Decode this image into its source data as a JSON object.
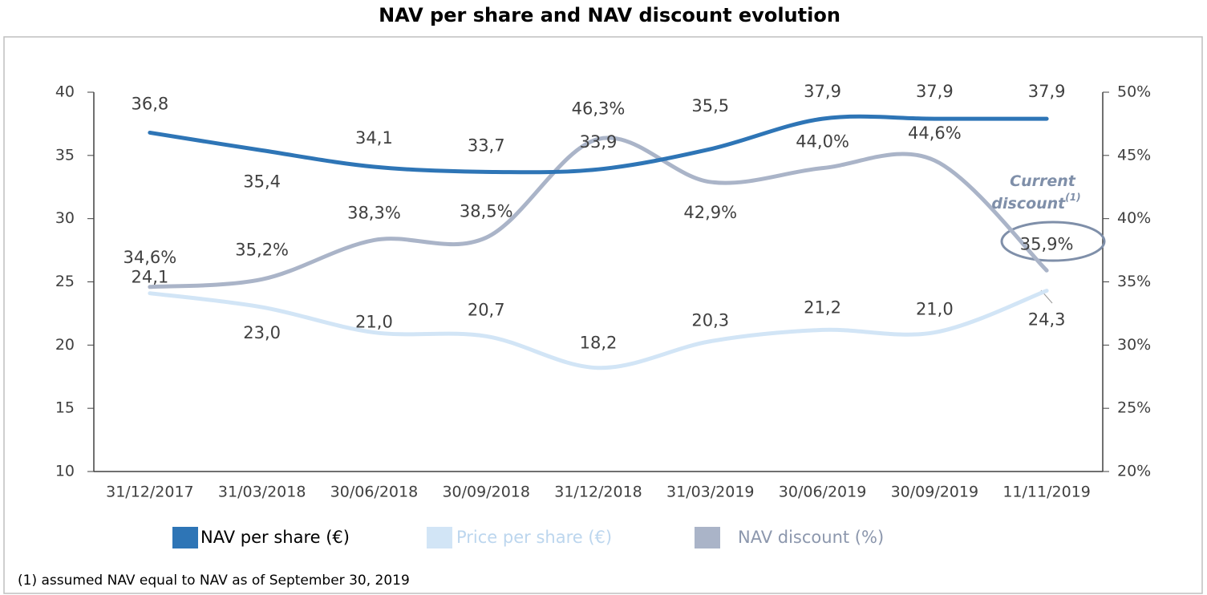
{
  "chart_data": {
    "type": "line",
    "title": "NAV per share and NAV discount evolution",
    "categories": [
      "31/12/2017",
      "31/03/2018",
      "30/06/2018",
      "30/09/2018",
      "31/12/2018",
      "31/03/2019",
      "30/06/2019",
      "30/09/2019",
      "11/11/2019"
    ],
    "series": [
      {
        "name": "NAV per share (€)",
        "color": "#2e75b6",
        "values": [
          36.8,
          35.4,
          34.1,
          33.7,
          33.9,
          35.5,
          37.9,
          37.9,
          37.9
        ],
        "value_labels": [
          "36,8",
          "35,4",
          "34,1",
          "33,7",
          "33,9",
          "35,5",
          "37,9",
          "37,9",
          "37,9"
        ]
      },
      {
        "name": "Price per share (€)",
        "color": "#d2e5f6",
        "values": [
          24.1,
          23.0,
          21.0,
          20.7,
          18.2,
          20.3,
          21.2,
          21.0,
          24.3
        ],
        "value_labels": [
          "24,1",
          "23,0",
          "21,0",
          "20,7",
          "18,2",
          "20,3",
          "21,2",
          "21,0",
          "24,3"
        ]
      },
      {
        "name": "NAV discount (%)",
        "color": "#aab4c8",
        "axis": "y2",
        "values": [
          34.6,
          35.2,
          38.3,
          38.5,
          46.3,
          42.9,
          44.0,
          44.6,
          35.9
        ],
        "value_labels": [
          "34,6%",
          "35,2%",
          "38,3%",
          "38,5%",
          "46,3%",
          "42,9%",
          "44,0%",
          "44,6%",
          "35,9%"
        ]
      }
    ],
    "ylim": [
      10,
      40
    ],
    "yticks": [
      10,
      15,
      20,
      25,
      30,
      35,
      40
    ],
    "y2lim": [
      20,
      50
    ],
    "y2ticks": [
      {
        "value": 20,
        "label": "20%"
      },
      {
        "value": 25,
        "label": "25%"
      },
      {
        "value": 30,
        "label": "30%"
      },
      {
        "value": 35,
        "label": "35%"
      },
      {
        "value": 40,
        "label": "40%"
      },
      {
        "value": 45,
        "label": "45%"
      },
      {
        "value": 50,
        "label": "50%"
      }
    ],
    "annotation": {
      "lines": [
        "Current",
        "discount"
      ],
      "superscript": "(1)"
    },
    "footnote": "(1) assumed NAV equal to NAV as of September 30, 2019",
    "legend": "bottom"
  }
}
